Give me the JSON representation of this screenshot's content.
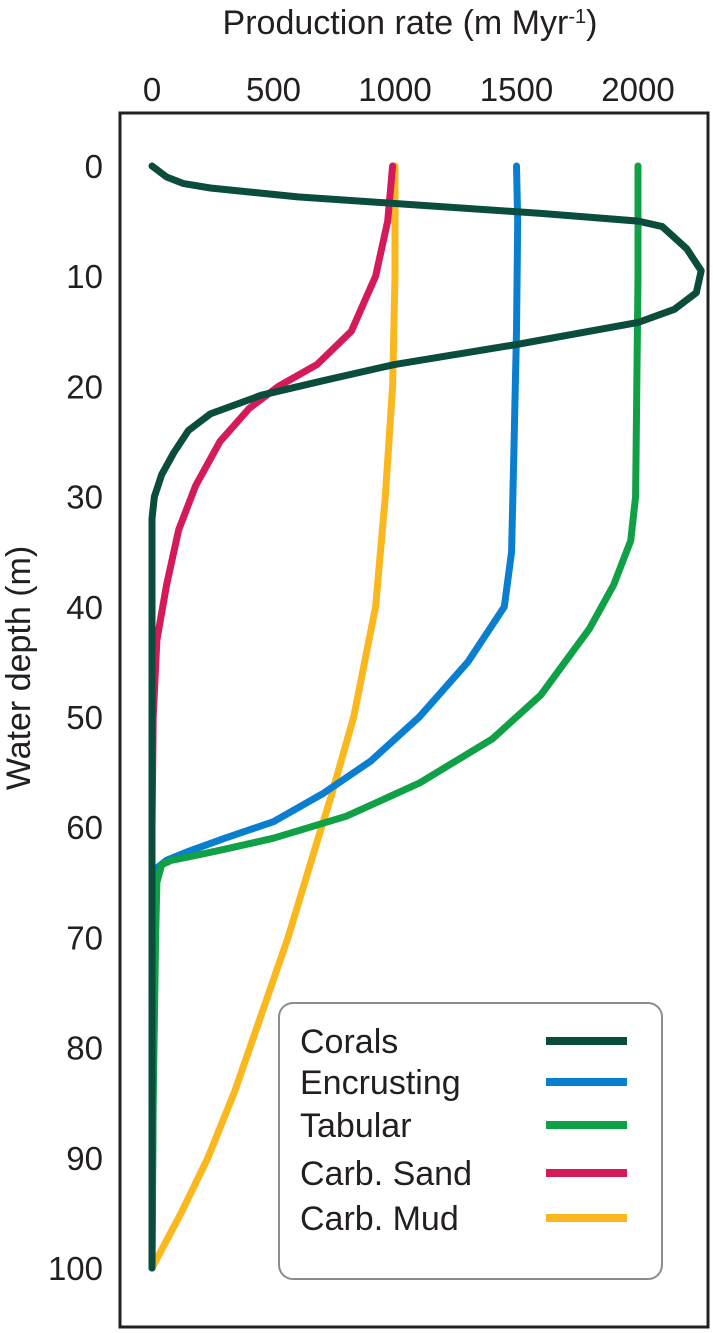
{
  "chart_data": {
    "type": "line",
    "title": "",
    "xlabel": "Production rate (m Myr",
    "xlabel_superscript": "-1",
    "xlabel_close": ")",
    "ylabel": "Water depth (m)",
    "x_axis_position": "top",
    "y_inverted": true,
    "xlim": [
      0,
      2300
    ],
    "ylim": [
      0,
      100
    ],
    "xticks": [
      0,
      500,
      1000,
      1500,
      2000
    ],
    "xtick_labels": [
      "0",
      "500",
      "1000",
      "1500",
      "2000"
    ],
    "yticks": [
      0,
      10,
      20,
      30,
      40,
      50,
      60,
      70,
      80,
      90,
      100
    ],
    "ytick_labels": [
      "0",
      "10",
      "20",
      "30",
      "40",
      "50",
      "60",
      "70",
      "80",
      "90",
      "100"
    ],
    "grid": false,
    "legend_position": "bottom-right",
    "series": [
      {
        "name": "Corals",
        "color": "#0b4d3c",
        "points": [
          [
            0,
            0
          ],
          [
            60,
            1
          ],
          [
            130,
            1.6
          ],
          [
            240,
            2
          ],
          [
            600,
            2.8
          ],
          [
            1000,
            3.4
          ],
          [
            1600,
            4.3
          ],
          [
            2000,
            5
          ],
          [
            2100,
            5.5
          ],
          [
            2200,
            7.5
          ],
          [
            2260,
            9.5
          ],
          [
            2240,
            11.5
          ],
          [
            2150,
            13
          ],
          [
            2000,
            14.2
          ],
          [
            1500,
            16.2
          ],
          [
            1000,
            18
          ],
          [
            700,
            19.5
          ],
          [
            450,
            20.8
          ],
          [
            240,
            22.5
          ],
          [
            150,
            24
          ],
          [
            90,
            26
          ],
          [
            40,
            28
          ],
          [
            10,
            30
          ],
          [
            0,
            32
          ],
          [
            0,
            100
          ]
        ]
      },
      {
        "name": "Encrusting",
        "color": "#0a7fcf",
        "points": [
          [
            1500,
            0
          ],
          [
            1505,
            5
          ],
          [
            1500,
            15
          ],
          [
            1490,
            25
          ],
          [
            1480,
            35
          ],
          [
            1450,
            40
          ],
          [
            1300,
            45
          ],
          [
            1100,
            50
          ],
          [
            900,
            54
          ],
          [
            700,
            57
          ],
          [
            500,
            59.5
          ],
          [
            300,
            61
          ],
          [
            150,
            62.2
          ],
          [
            60,
            63
          ],
          [
            20,
            63.7
          ],
          [
            10,
            66
          ],
          [
            5,
            80
          ],
          [
            0,
            100
          ]
        ]
      },
      {
        "name": "Tabular",
        "color": "#10a046",
        "points": [
          [
            2000,
            0
          ],
          [
            2000,
            10
          ],
          [
            1995,
            20
          ],
          [
            1990,
            30
          ],
          [
            1970,
            34
          ],
          [
            1900,
            38
          ],
          [
            1800,
            42
          ],
          [
            1600,
            48
          ],
          [
            1400,
            52
          ],
          [
            1100,
            56
          ],
          [
            800,
            59
          ],
          [
            500,
            61
          ],
          [
            300,
            62
          ],
          [
            150,
            62.7
          ],
          [
            80,
            63
          ],
          [
            40,
            63.4
          ],
          [
            20,
            65
          ],
          [
            15,
            70
          ],
          [
            5,
            85
          ],
          [
            0,
            100
          ]
        ]
      },
      {
        "name": "Carb. Sand",
        "color": "#d51a5c",
        "points": [
          [
            990,
            0
          ],
          [
            970,
            5
          ],
          [
            920,
            10
          ],
          [
            820,
            15
          ],
          [
            680,
            18
          ],
          [
            520,
            20
          ],
          [
            400,
            22
          ],
          [
            280,
            25
          ],
          [
            180,
            29
          ],
          [
            110,
            33
          ],
          [
            60,
            38
          ],
          [
            20,
            43
          ],
          [
            5,
            50
          ],
          [
            0,
            60
          ]
        ]
      },
      {
        "name": "Carb. Mud",
        "color": "#fbb81e",
        "points": [
          [
            1000,
            0
          ],
          [
            1000,
            10
          ],
          [
            990,
            20
          ],
          [
            960,
            30
          ],
          [
            920,
            40
          ],
          [
            830,
            50
          ],
          [
            740,
            57
          ],
          [
            670,
            62
          ],
          [
            560,
            70
          ],
          [
            450,
            77
          ],
          [
            340,
            84
          ],
          [
            230,
            90
          ],
          [
            120,
            95
          ],
          [
            0,
            100
          ]
        ]
      }
    ]
  }
}
